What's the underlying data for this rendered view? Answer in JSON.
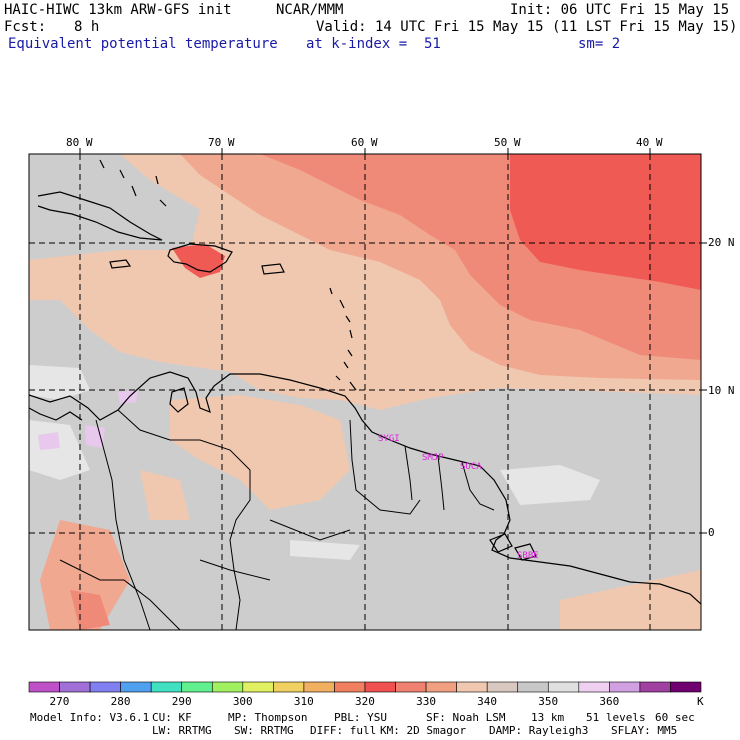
{
  "header": {
    "model_title": "HAIC-HIWC 13km ARW-GFS init",
    "org": "NCAR/MMM",
    "init": "Init: 06 UTC Fri 15 May 15",
    "fcst_label": "Fcst:",
    "fcst_value": "8 h",
    "valid": "Valid: 14 UTC Fri 15 May 15 (11 LST Fri 15 May 15)",
    "field_name": "Equivalent potential temperature",
    "level": "at k-index =  51",
    "smoothing": "sm= 2"
  },
  "map": {
    "lon_labels": [
      "80 W",
      "70 W",
      "60 W",
      "50 W",
      "40 W"
    ],
    "lat_labels": [
      "20 N",
      "10 N",
      "0"
    ],
    "stations": [
      "SYGI",
      "SMJP",
      "SOCA",
      "SBBE"
    ],
    "station_color": "#e020e0"
  },
  "colorbar": {
    "unit": "K",
    "tick_labels": [
      "270",
      "280",
      "290",
      "300",
      "310",
      "320",
      "330",
      "340",
      "350",
      "360"
    ],
    "colors": [
      "#c050c8",
      "#a070d8",
      "#8080f0",
      "#50a0f0",
      "#40e0c0",
      "#60f090",
      "#a0f060",
      "#e0f060",
      "#f0d060",
      "#f0b060",
      "#f08060",
      "#f05050",
      "#f08070",
      "#f0a080",
      "#f0c8b0",
      "#d8c8c0",
      "#c8c8c8",
      "#e0e0e0",
      "#f0d0f0",
      "#d0a0e0",
      "#a040a0",
      "#700070"
    ]
  },
  "footer": {
    "line1": [
      "Model Info: V3.6.1",
      "CU: KF",
      "MP: Thompson",
      "PBL: YSU",
      "SF: Noah LSM",
      "13 km",
      "51 levels",
      "60 sec"
    ],
    "line2": [
      "LW: RRTMG",
      "SW: RRTMG",
      "DIFF: full",
      "KM: 2D Smagor",
      "DAMP: Rayleigh3",
      "SFLAY: MM5"
    ]
  }
}
